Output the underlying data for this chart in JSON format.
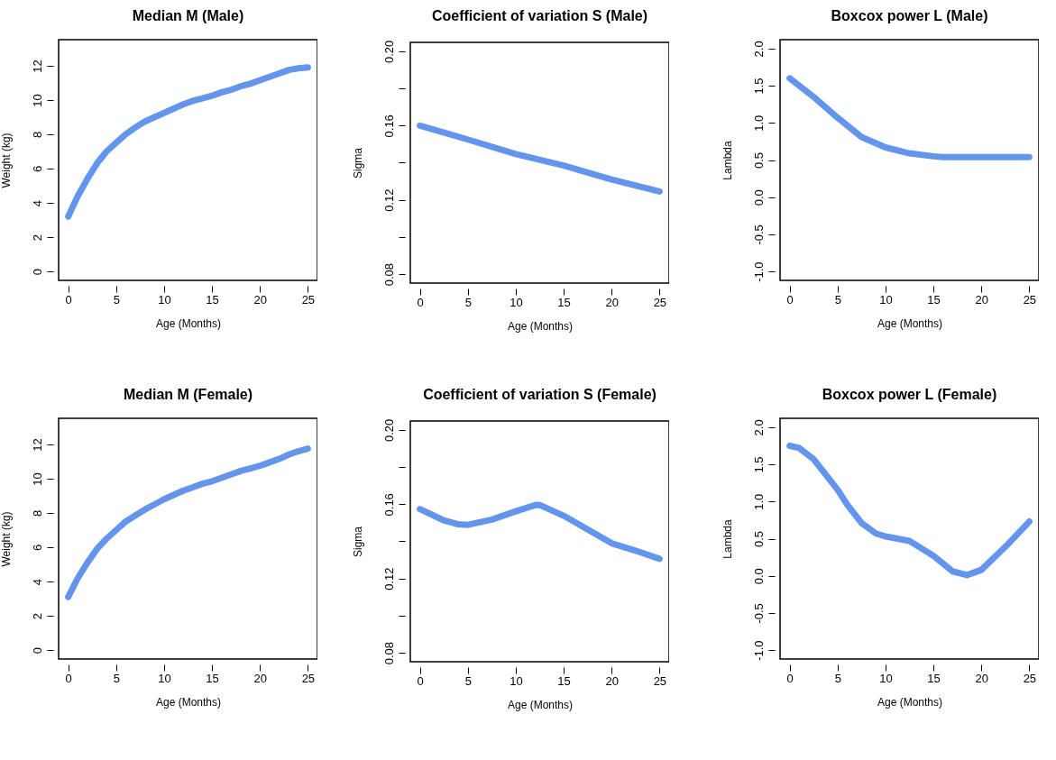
{
  "chart_data": [
    {
      "type": "line",
      "title": "Median M (Male)",
      "xlabel": "Age (Months)",
      "ylabel": "Weight (kg)",
      "xlim": [
        -1,
        26
      ],
      "xticks": [
        0,
        5,
        10,
        15,
        20,
        25
      ],
      "ylim": [
        -0.52,
        13.52
      ],
      "yticks": [
        0,
        2,
        4,
        6,
        8,
        10,
        12
      ],
      "x": [
        0,
        0.5,
        1,
        2,
        3,
        4,
        5,
        6,
        7,
        8,
        9,
        10,
        11,
        12,
        13,
        14,
        15,
        16,
        17,
        18,
        19,
        20,
        21,
        22,
        23,
        24,
        25
      ],
      "series": [
        {
          "color": "#6495ed",
          "values": [
            3.2,
            3.8,
            4.4,
            5.4,
            6.3,
            7.0,
            7.5,
            8.0,
            8.4,
            8.75,
            9.0,
            9.25,
            9.5,
            9.75,
            9.95,
            10.1,
            10.25,
            10.45,
            10.6,
            10.8,
            10.95,
            11.15,
            11.35,
            11.55,
            11.75,
            11.85,
            11.9
          ]
        }
      ]
    },
    {
      "type": "line",
      "title": "Coefficient of variation S (Male)",
      "xlabel": "Age (Months)",
      "ylabel": "Sigma",
      "xlim": [
        -1,
        26
      ],
      "xticks": [
        0,
        5,
        10,
        15,
        20,
        25
      ],
      "ylim": [
        0.0752,
        0.2048
      ],
      "yticks": [
        0.08,
        {
          "value": 0.1,
          "label": null
        },
        0.12,
        {
          "value": 0.14,
          "label": null
        },
        0.16,
        {
          "value": 0.18,
          "label": null
        },
        {
          "value": 0.2,
          "label": "0.20"
        }
      ],
      "x": [
        0,
        5,
        10,
        15,
        20,
        25
      ],
      "series": [
        {
          "color": "#6495ed",
          "values": [
            0.16,
            0.1525,
            0.1447,
            0.1385,
            0.131,
            0.1245
          ]
        }
      ]
    },
    {
      "type": "line",
      "title": "Boxcox power L (Male)",
      "xlabel": "Age (Months)",
      "ylabel": "Lambda",
      "xlim": [
        -1,
        26
      ],
      "xticks": [
        0,
        5,
        10,
        15,
        20,
        25
      ],
      "ylim": [
        -1.12,
        2.12
      ],
      "yticks": [
        {
          "value": -1,
          "label": "-1.0"
        },
        -0.5,
        {
          "value": 0,
          "label": "0.0"
        },
        0.5,
        {
          "value": 1,
          "label": "1.0"
        },
        1.5,
        {
          "value": 2,
          "label": "2.0"
        }
      ],
      "x": [
        0,
        2.5,
        5,
        7.5,
        10,
        12.5,
        15,
        16,
        20,
        25
      ],
      "series": [
        {
          "color": "#6495ed",
          "values": [
            1.6,
            1.35,
            1.07,
            0.81,
            0.67,
            0.59,
            0.55,
            0.54,
            0.54,
            0.54
          ]
        }
      ]
    },
    {
      "type": "line",
      "title": "Median M (Female)",
      "xlabel": "Age (Months)",
      "ylabel": "Weight (kg)",
      "xlim": [
        -1,
        26
      ],
      "xticks": [
        0,
        5,
        10,
        15,
        20,
        25
      ],
      "ylim": [
        -0.52,
        13.52
      ],
      "yticks": [
        0,
        2,
        4,
        6,
        8,
        10,
        12
      ],
      "x": [
        0,
        1,
        2,
        3,
        4,
        5,
        6,
        7,
        8,
        9,
        10,
        11,
        12,
        13,
        14,
        15,
        16,
        17,
        18,
        19,
        20,
        21,
        22,
        23,
        24,
        25
      ],
      "series": [
        {
          "color": "#6495ed",
          "values": [
            3.1,
            4.2,
            5.1,
            5.9,
            6.5,
            7.0,
            7.5,
            7.85,
            8.2,
            8.5,
            8.8,
            9.05,
            9.3,
            9.5,
            9.7,
            9.85,
            10.05,
            10.25,
            10.45,
            10.6,
            10.75,
            10.95,
            11.15,
            11.4,
            11.6,
            11.75
          ]
        }
      ]
    },
    {
      "type": "line",
      "title": "Coefficient of variation S (Female)",
      "xlabel": "Age (Months)",
      "ylabel": "Sigma",
      "xlim": [
        -1,
        26
      ],
      "xticks": [
        0,
        5,
        10,
        15,
        20,
        25
      ],
      "ylim": [
        0.0752,
        0.2048
      ],
      "yticks": [
        0.08,
        {
          "value": 0.1,
          "label": null
        },
        0.12,
        {
          "value": 0.14,
          "label": null
        },
        0.16,
        {
          "value": 0.18,
          "label": null
        },
        {
          "value": 0.2,
          "label": "0.20"
        }
      ],
      "x": [
        0,
        2.5,
        4,
        5,
        7.5,
        10,
        12,
        12.5,
        15,
        17.5,
        20,
        22.5,
        25
      ],
      "series": [
        {
          "color": "#6495ed",
          "values": [
            0.1574,
            0.1513,
            0.1492,
            0.1489,
            0.1517,
            0.1562,
            0.1595,
            0.1596,
            0.1538,
            0.1464,
            0.139,
            0.135,
            0.1306
          ]
        }
      ]
    },
    {
      "type": "line",
      "title": "Boxcox power L (Female)",
      "xlabel": "Age (Months)",
      "ylabel": "Lambda",
      "xlim": [
        -1,
        26
      ],
      "xticks": [
        0,
        5,
        10,
        15,
        20,
        25
      ],
      "ylim": [
        -1.12,
        2.12
      ],
      "yticks": [
        {
          "value": -1,
          "label": "-1.0"
        },
        -0.5,
        {
          "value": 0,
          "label": "0.0"
        },
        0.5,
        {
          "value": 1,
          "label": "1.0"
        },
        1.5,
        {
          "value": 2,
          "label": "2.0"
        }
      ],
      "x": [
        0,
        1,
        2.5,
        5,
        6,
        7.5,
        9,
        10,
        12.5,
        14,
        15,
        17,
        18.5,
        20,
        22.5,
        25
      ],
      "series": [
        {
          "color": "#6495ed",
          "values": [
            1.75,
            1.72,
            1.57,
            1.16,
            0.96,
            0.71,
            0.57,
            0.53,
            0.47,
            0.35,
            0.27,
            0.06,
            0.01,
            0.08,
            0.39,
            0.73
          ]
        }
      ]
    }
  ]
}
